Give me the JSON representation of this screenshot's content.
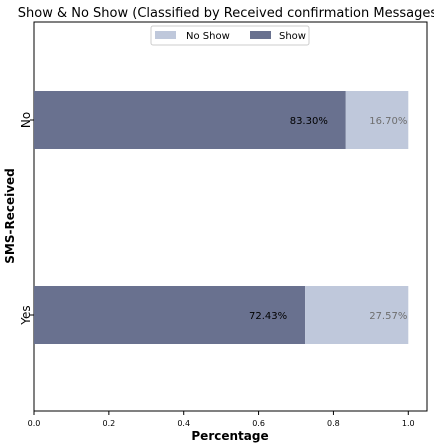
{
  "chart_data": {
    "type": "bar",
    "orientation": "horizontal",
    "stacked": true,
    "title": "Show & No Show (Classified by Received confirmation Messages)",
    "xlabel": "Percentage",
    "ylabel": "SMS-Received",
    "categories": [
      "No",
      "Yes"
    ],
    "xlim": [
      0,
      1.05
    ],
    "xticks": [
      "0.0",
      "0.2",
      "0.4",
      "0.6",
      "0.8",
      "1.0"
    ],
    "xtick_values": [
      0,
      0.2,
      0.4,
      0.6,
      0.8,
      1.0
    ],
    "grid": false,
    "legend_position": "top-center",
    "series": [
      {
        "name": "Show",
        "values": [
          0.833,
          0.7243
        ],
        "labels": [
          "83.30%",
          "72.43%"
        ],
        "color": "#69718f",
        "label_color": "#000000"
      },
      {
        "name": "No Show",
        "values": [
          0.167,
          0.2757
        ],
        "labels": [
          "16.70%",
          "27.57%"
        ],
        "color": "#bfc8db",
        "label_color": "#6e6e6e"
      }
    ],
    "legend": [
      "No Show",
      "Show"
    ]
  }
}
